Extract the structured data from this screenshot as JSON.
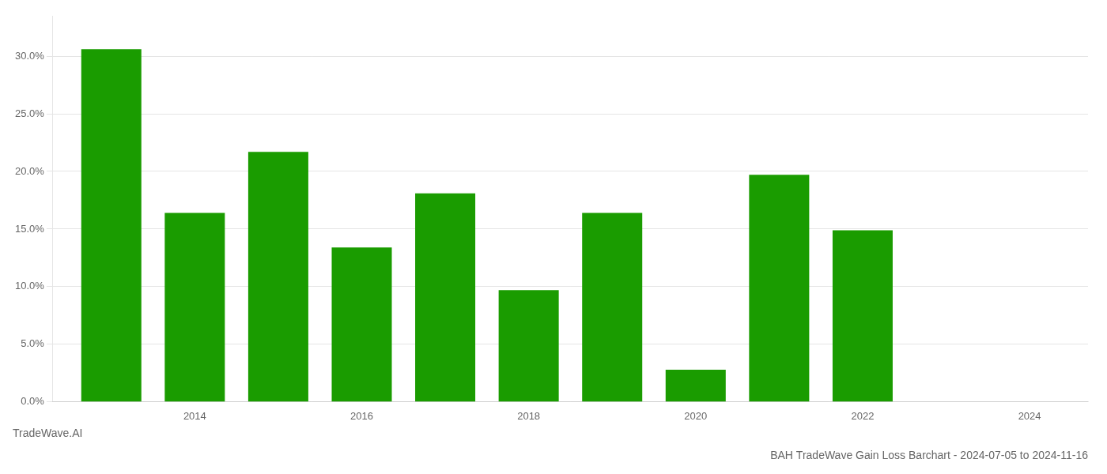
{
  "chart_data": {
    "type": "bar",
    "title": "BAH TradeWave Gain Loss Barchart - 2024-07-05 to 2024-11-16",
    "annotations": [
      "TradeWave.AI"
    ],
    "x": [
      2013,
      2014,
      2015,
      2016,
      2017,
      2018,
      2019,
      2020,
      2021,
      2022,
      2023
    ],
    "values": [
      0.306,
      0.164,
      0.217,
      0.134,
      0.181,
      0.097,
      0.164,
      0.028,
      0.197,
      0.149,
      0.0
    ],
    "color": "#1a9c00",
    "xlim": [
      2012.3,
      2024.7
    ],
    "xticks": [
      2014,
      2016,
      2018,
      2020,
      2022,
      2024
    ],
    "ylim": [
      0,
      0.335
    ],
    "yticks": [
      {
        "value": 0,
        "label": "0.0%"
      },
      {
        "value": 0.05,
        "label": "5.0%"
      },
      {
        "value": 0.1,
        "label": "10.0%"
      },
      {
        "value": 0.15,
        "label": "15.0%"
      },
      {
        "value": 0.2,
        "label": "20.0%"
      },
      {
        "value": 0.25,
        "label": "25.0%"
      },
      {
        "value": 0.3,
        "label": "30.0%"
      }
    ],
    "grid": true
  }
}
